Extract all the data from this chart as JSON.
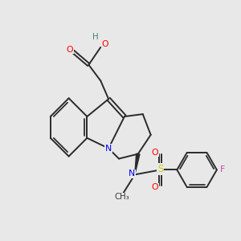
{
  "background_color": "#e8e8e8",
  "figure_size": [
    3.0,
    3.0
  ],
  "dpi": 100,
  "bond_color": "#2a2a2a",
  "bond_lw": 1.4,
  "atom_colors": {
    "O": "#ff0000",
    "N": "#0000ee",
    "S": "#cccc00",
    "F": "#cc44aa",
    "H_gray": "#557777"
  },
  "label_fontsize": 7.8,
  "label_bg": "#e8e8e8"
}
